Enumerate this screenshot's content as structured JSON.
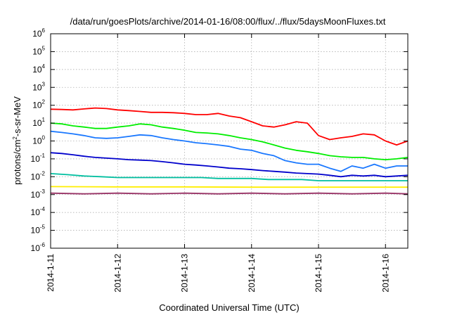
{
  "chart_data": {
    "type": "line",
    "title": "/data/run/goesPlots/archive/2014-01-16/08:00/flux/../flux/5daysMoonFluxes.txt",
    "xlabel": "Coordinated Universal Time (UTC)",
    "ylabel": {
      "pre": "protons/cm",
      "sup": "2",
      "post": "-s-sr-MeV"
    },
    "yscale": "log",
    "ylim": [
      1e-06,
      1000000.0
    ],
    "xlim": [
      "2014-01-11T00:00",
      "2014-01-16T08:00"
    ],
    "x_ticks": [
      {
        "t": "2014-01-11T00:00",
        "label": "2014-1-11"
      },
      {
        "t": "2014-01-12T00:00",
        "label": "2014-1-12"
      },
      {
        "t": "2014-01-13T00:00",
        "label": "2014-1-13"
      },
      {
        "t": "2014-01-14T00:00",
        "label": "2014-1-14"
      },
      {
        "t": "2014-01-15T00:00",
        "label": "2014-1-15"
      },
      {
        "t": "2014-01-16T00:00",
        "label": "2014-1-16"
      }
    ],
    "y_ticks": [
      {
        "v": 1e-06,
        "base": "10",
        "exp": "-6"
      },
      {
        "v": 1e-05,
        "base": "10",
        "exp": "-5"
      },
      {
        "v": 0.0001,
        "base": "10",
        "exp": "-4"
      },
      {
        "v": 0.001,
        "base": "10",
        "exp": "-3"
      },
      {
        "v": 0.01,
        "base": "10",
        "exp": "-2"
      },
      {
        "v": 0.1,
        "base": "10",
        "exp": "-1"
      },
      {
        "v": 1,
        "base": "10",
        "exp": "0"
      },
      {
        "v": 10,
        "base": "10",
        "exp": "1"
      },
      {
        "v": 100,
        "base": "10",
        "exp": "2"
      },
      {
        "v": 1000,
        "base": "10",
        "exp": "3"
      },
      {
        "v": 10000,
        "base": "10",
        "exp": "4"
      },
      {
        "v": 100000,
        "base": "10",
        "exp": "5"
      },
      {
        "v": 1000000,
        "base": "10",
        "exp": "6"
      }
    ],
    "grid": true,
    "series": [
      {
        "color": "#ff0000",
        "points": [
          [
            "2014-01-11T00:00",
            60
          ],
          [
            "2014-01-11T04:00",
            58
          ],
          [
            "2014-01-11T08:00",
            55
          ],
          [
            "2014-01-11T12:00",
            62
          ],
          [
            "2014-01-11T16:00",
            70
          ],
          [
            "2014-01-11T20:00",
            65
          ],
          [
            "2014-01-12T00:00",
            55
          ],
          [
            "2014-01-12T04:00",
            50
          ],
          [
            "2014-01-12T08:00",
            45
          ],
          [
            "2014-01-12T12:00",
            40
          ],
          [
            "2014-01-12T16:00",
            40
          ],
          [
            "2014-01-12T20:00",
            38
          ],
          [
            "2014-01-13T00:00",
            35
          ],
          [
            "2014-01-13T04:00",
            30
          ],
          [
            "2014-01-13T08:00",
            30
          ],
          [
            "2014-01-13T12:00",
            35
          ],
          [
            "2014-01-13T16:00",
            25
          ],
          [
            "2014-01-13T20:00",
            20
          ],
          [
            "2014-01-14T00:00",
            12
          ],
          [
            "2014-01-14T04:00",
            7
          ],
          [
            "2014-01-14T08:00",
            6
          ],
          [
            "2014-01-14T12:00",
            8
          ],
          [
            "2014-01-14T16:00",
            12
          ],
          [
            "2014-01-14T20:00",
            10
          ],
          [
            "2014-01-15T00:00",
            2
          ],
          [
            "2014-01-15T04:00",
            1.2
          ],
          [
            "2014-01-15T08:00",
            1.5
          ],
          [
            "2014-01-15T12:00",
            1.8
          ],
          [
            "2014-01-15T16:00",
            2.5
          ],
          [
            "2014-01-15T20:00",
            2.2
          ],
          [
            "2014-01-16T00:00",
            1.0
          ],
          [
            "2014-01-16T04:00",
            0.6
          ],
          [
            "2014-01-16T08:00",
            1.0
          ]
        ]
      },
      {
        "color": "#00ee00",
        "points": [
          [
            "2014-01-11T00:00",
            10
          ],
          [
            "2014-01-11T04:00",
            9
          ],
          [
            "2014-01-11T08:00",
            7
          ],
          [
            "2014-01-11T12:00",
            6
          ],
          [
            "2014-01-11T16:00",
            5
          ],
          [
            "2014-01-11T20:00",
            5
          ],
          [
            "2014-01-12T00:00",
            6
          ],
          [
            "2014-01-12T04:00",
            7
          ],
          [
            "2014-01-12T08:00",
            9
          ],
          [
            "2014-01-12T12:00",
            8
          ],
          [
            "2014-01-12T16:00",
            6
          ],
          [
            "2014-01-12T20:00",
            5
          ],
          [
            "2014-01-13T00:00",
            4
          ],
          [
            "2014-01-13T04:00",
            3
          ],
          [
            "2014-01-13T08:00",
            2.8
          ],
          [
            "2014-01-13T12:00",
            2.5
          ],
          [
            "2014-01-13T16:00",
            2
          ],
          [
            "2014-01-13T20:00",
            1.5
          ],
          [
            "2014-01-14T00:00",
            1.2
          ],
          [
            "2014-01-14T04:00",
            0.9
          ],
          [
            "2014-01-14T08:00",
            0.6
          ],
          [
            "2014-01-14T12:00",
            0.4
          ],
          [
            "2014-01-14T16:00",
            0.3
          ],
          [
            "2014-01-14T20:00",
            0.25
          ],
          [
            "2014-01-15T00:00",
            0.2
          ],
          [
            "2014-01-15T04:00",
            0.15
          ],
          [
            "2014-01-15T08:00",
            0.13
          ],
          [
            "2014-01-15T12:00",
            0.12
          ],
          [
            "2014-01-15T16:00",
            0.12
          ],
          [
            "2014-01-15T20:00",
            0.1
          ],
          [
            "2014-01-16T00:00",
            0.09
          ],
          [
            "2014-01-16T04:00",
            0.1
          ],
          [
            "2014-01-16T08:00",
            0.12
          ]
        ]
      },
      {
        "color": "#1a78ff",
        "points": [
          [
            "2014-01-11T00:00",
            3.5
          ],
          [
            "2014-01-11T04:00",
            3
          ],
          [
            "2014-01-11T08:00",
            2.5
          ],
          [
            "2014-01-11T12:00",
            2
          ],
          [
            "2014-01-11T16:00",
            1.5
          ],
          [
            "2014-01-11T20:00",
            1.4
          ],
          [
            "2014-01-12T00:00",
            1.5
          ],
          [
            "2014-01-12T04:00",
            1.8
          ],
          [
            "2014-01-12T08:00",
            2.2
          ],
          [
            "2014-01-12T12:00",
            2
          ],
          [
            "2014-01-12T16:00",
            1.5
          ],
          [
            "2014-01-12T20:00",
            1.2
          ],
          [
            "2014-01-13T00:00",
            1.0
          ],
          [
            "2014-01-13T04:00",
            0.8
          ],
          [
            "2014-01-13T08:00",
            0.7
          ],
          [
            "2014-01-13T12:00",
            0.6
          ],
          [
            "2014-01-13T16:00",
            0.5
          ],
          [
            "2014-01-13T20:00",
            0.35
          ],
          [
            "2014-01-14T00:00",
            0.3
          ],
          [
            "2014-01-14T04:00",
            0.2
          ],
          [
            "2014-01-14T08:00",
            0.15
          ],
          [
            "2014-01-14T12:00",
            0.08
          ],
          [
            "2014-01-14T16:00",
            0.06
          ],
          [
            "2014-01-14T20:00",
            0.05
          ],
          [
            "2014-01-15T00:00",
            0.05
          ],
          [
            "2014-01-15T04:00",
            0.03
          ],
          [
            "2014-01-15T08:00",
            0.02
          ],
          [
            "2014-01-15T12:00",
            0.04
          ],
          [
            "2014-01-15T16:00",
            0.03
          ],
          [
            "2014-01-15T20:00",
            0.05
          ],
          [
            "2014-01-16T00:00",
            0.03
          ],
          [
            "2014-01-16T04:00",
            0.04
          ],
          [
            "2014-01-16T08:00",
            0.04
          ]
        ]
      },
      {
        "color": "#0000cc",
        "points": [
          [
            "2014-01-11T00:00",
            0.22
          ],
          [
            "2014-01-11T04:00",
            0.2
          ],
          [
            "2014-01-11T08:00",
            0.17
          ],
          [
            "2014-01-11T12:00",
            0.14
          ],
          [
            "2014-01-11T16:00",
            0.12
          ],
          [
            "2014-01-11T20:00",
            0.11
          ],
          [
            "2014-01-12T00:00",
            0.1
          ],
          [
            "2014-01-12T04:00",
            0.09
          ],
          [
            "2014-01-12T08:00",
            0.085
          ],
          [
            "2014-01-12T12:00",
            0.08
          ],
          [
            "2014-01-12T16:00",
            0.07
          ],
          [
            "2014-01-12T20:00",
            0.06
          ],
          [
            "2014-01-13T00:00",
            0.05
          ],
          [
            "2014-01-13T04:00",
            0.045
          ],
          [
            "2014-01-13T08:00",
            0.04
          ],
          [
            "2014-01-13T12:00",
            0.035
          ],
          [
            "2014-01-13T16:00",
            0.03
          ],
          [
            "2014-01-13T20:00",
            0.028
          ],
          [
            "2014-01-14T00:00",
            0.025
          ],
          [
            "2014-01-14T04:00",
            0.022
          ],
          [
            "2014-01-14T08:00",
            0.02
          ],
          [
            "2014-01-14T12:00",
            0.018
          ],
          [
            "2014-01-14T16:00",
            0.016
          ],
          [
            "2014-01-14T20:00",
            0.015
          ],
          [
            "2014-01-15T00:00",
            0.014
          ],
          [
            "2014-01-15T04:00",
            0.012
          ],
          [
            "2014-01-15T08:00",
            0.01
          ],
          [
            "2014-01-15T12:00",
            0.012
          ],
          [
            "2014-01-15T16:00",
            0.011
          ],
          [
            "2014-01-15T20:00",
            0.012
          ],
          [
            "2014-01-16T00:00",
            0.01
          ],
          [
            "2014-01-16T04:00",
            0.011
          ],
          [
            "2014-01-16T08:00",
            0.012
          ]
        ]
      },
      {
        "color": "#00bfa0",
        "points": [
          [
            "2014-01-11T00:00",
            0.015
          ],
          [
            "2014-01-11T06:00",
            0.013
          ],
          [
            "2014-01-11T12:00",
            0.011
          ],
          [
            "2014-01-11T18:00",
            0.01
          ],
          [
            "2014-01-12T00:00",
            0.009
          ],
          [
            "2014-01-12T06:00",
            0.009
          ],
          [
            "2014-01-12T12:00",
            0.009
          ],
          [
            "2014-01-12T18:00",
            0.009
          ],
          [
            "2014-01-13T00:00",
            0.009
          ],
          [
            "2014-01-13T06:00",
            0.009
          ],
          [
            "2014-01-13T12:00",
            0.008
          ],
          [
            "2014-01-13T18:00",
            0.008
          ],
          [
            "2014-01-14T00:00",
            0.008
          ],
          [
            "2014-01-14T06:00",
            0.007
          ],
          [
            "2014-01-14T12:00",
            0.007
          ],
          [
            "2014-01-14T18:00",
            0.007
          ],
          [
            "2014-01-15T00:00",
            0.006
          ],
          [
            "2014-01-15T06:00",
            0.006
          ],
          [
            "2014-01-15T12:00",
            0.006
          ],
          [
            "2014-01-15T18:00",
            0.006
          ],
          [
            "2014-01-16T00:00",
            0.006
          ],
          [
            "2014-01-16T08:00",
            0.006
          ]
        ]
      },
      {
        "color": "#ffee00",
        "points": [
          [
            "2014-01-11T00:00",
            0.0028
          ],
          [
            "2014-01-12T00:00",
            0.0027
          ],
          [
            "2014-01-13T00:00",
            0.0027
          ],
          [
            "2014-01-14T00:00",
            0.0026
          ],
          [
            "2014-01-15T00:00",
            0.0026
          ],
          [
            "2014-01-16T00:00",
            0.0026
          ],
          [
            "2014-01-16T08:00",
            0.0026
          ]
        ]
      },
      {
        "color": "#993366",
        "points": [
          [
            "2014-01-11T00:00",
            0.0012
          ],
          [
            "2014-01-11T12:00",
            0.0011
          ],
          [
            "2014-01-12T00:00",
            0.0012
          ],
          [
            "2014-01-12T12:00",
            0.0011
          ],
          [
            "2014-01-13T00:00",
            0.0012
          ],
          [
            "2014-01-13T12:00",
            0.0011
          ],
          [
            "2014-01-14T00:00",
            0.0012
          ],
          [
            "2014-01-14T12:00",
            0.0011
          ],
          [
            "2014-01-15T00:00",
            0.0012
          ],
          [
            "2014-01-15T12:00",
            0.0011
          ],
          [
            "2014-01-16T00:00",
            0.0012
          ],
          [
            "2014-01-16T08:00",
            0.0011
          ]
        ]
      }
    ]
  }
}
